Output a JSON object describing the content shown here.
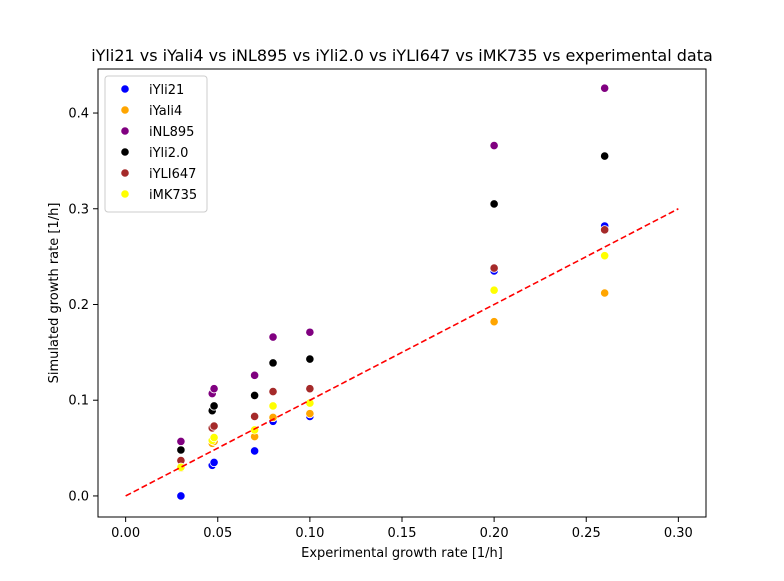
{
  "chart_data": {
    "type": "scatter",
    "title": "iYli21 vs iYali4 vs iNL895 vs iYli2.0 vs iYLI647 vs iMK735 vs experimental data",
    "xlabel": "Experimental growth rate [1/h]",
    "ylabel": "Simulated growth rate [1/h]",
    "xlim": [
      -0.015,
      0.315
    ],
    "ylim": [
      -0.022,
      0.446
    ],
    "xticks": [
      "0.00",
      "0.05",
      "0.10",
      "0.15",
      "0.20",
      "0.25",
      "0.30"
    ],
    "yticks": [
      "0.0",
      "0.1",
      "0.2",
      "0.3",
      "0.4"
    ],
    "grid": false,
    "legend_position": "top-left",
    "reference_line": {
      "x": [
        0.0,
        0.3
      ],
      "y": [
        0.0,
        0.3
      ],
      "color": "#ff0000",
      "style": "dashed"
    },
    "series": [
      {
        "name": "iYli21",
        "color": "#0000ff",
        "points": [
          [
            0.03,
            0.0
          ],
          [
            0.047,
            0.032
          ],
          [
            0.048,
            0.035
          ],
          [
            0.07,
            0.047
          ],
          [
            0.08,
            0.078
          ],
          [
            0.1,
            0.083
          ],
          [
            0.2,
            0.235
          ],
          [
            0.26,
            0.282
          ]
        ]
      },
      {
        "name": "iYali4",
        "color": "#ffa500",
        "points": [
          [
            0.03,
            0.029
          ],
          [
            0.047,
            0.055
          ],
          [
            0.048,
            0.057
          ],
          [
            0.07,
            0.062
          ],
          [
            0.08,
            0.082
          ],
          [
            0.1,
            0.086
          ],
          [
            0.2,
            0.182
          ],
          [
            0.26,
            0.212
          ]
        ]
      },
      {
        "name": "iNL895",
        "color": "#800080",
        "points": [
          [
            0.03,
            0.057
          ],
          [
            0.047,
            0.107
          ],
          [
            0.048,
            0.112
          ],
          [
            0.07,
            0.126
          ],
          [
            0.08,
            0.166
          ],
          [
            0.1,
            0.171
          ],
          [
            0.2,
            0.366
          ],
          [
            0.26,
            0.426
          ]
        ]
      },
      {
        "name": "iYli2.0",
        "color": "#000000",
        "points": [
          [
            0.03,
            0.048
          ],
          [
            0.047,
            0.089
          ],
          [
            0.048,
            0.094
          ],
          [
            0.07,
            0.105
          ],
          [
            0.08,
            0.139
          ],
          [
            0.1,
            0.143
          ],
          [
            0.2,
            0.305
          ],
          [
            0.26,
            0.355
          ]
        ]
      },
      {
        "name": "iYLI647",
        "color": "#a52a2a",
        "points": [
          [
            0.03,
            0.037
          ],
          [
            0.047,
            0.071
          ],
          [
            0.048,
            0.073
          ],
          [
            0.07,
            0.083
          ],
          [
            0.08,
            0.109
          ],
          [
            0.1,
            0.112
          ],
          [
            0.2,
            0.238
          ],
          [
            0.26,
            0.278
          ]
        ]
      },
      {
        "name": "iMK735",
        "color": "#ffff00",
        "points": [
          [
            0.03,
            0.03
          ],
          [
            0.047,
            0.058
          ],
          [
            0.048,
            0.061
          ],
          [
            0.07,
            0.069
          ],
          [
            0.08,
            0.094
          ],
          [
            0.1,
            0.097
          ],
          [
            0.2,
            0.215
          ],
          [
            0.26,
            0.251
          ]
        ]
      }
    ]
  }
}
